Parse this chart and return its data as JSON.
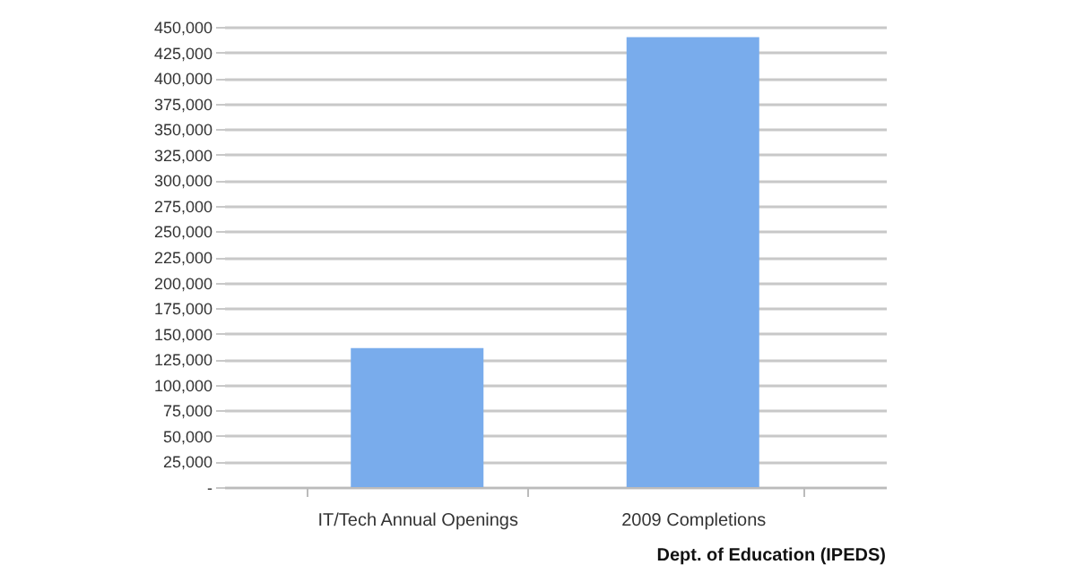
{
  "chart_data": {
    "type": "bar",
    "categories": [
      "IT/Tech Annual Openings",
      "2009 Completions"
    ],
    "values": [
      136000,
      440000
    ],
    "color": "#79acec",
    "ylim": [
      0,
      450000
    ],
    "yticks": [
      {
        "value": 0,
        "label": "-"
      },
      {
        "value": 25000,
        "label": "25,000"
      },
      {
        "value": 50000,
        "label": "50,000"
      },
      {
        "value": 75000,
        "label": "75,000"
      },
      {
        "value": 100000,
        "label": "100,000"
      },
      {
        "value": 125000,
        "label": "125,000"
      },
      {
        "value": 150000,
        "label": "150,000"
      },
      {
        "value": 175000,
        "label": "175,000"
      },
      {
        "value": 200000,
        "label": "200,000"
      },
      {
        "value": 225000,
        "label": "225,000"
      },
      {
        "value": 250000,
        "label": "250,000"
      },
      {
        "value": 275000,
        "label": "275,000"
      },
      {
        "value": 300000,
        "label": "300,000"
      },
      {
        "value": 325000,
        "label": "325,000"
      },
      {
        "value": 350000,
        "label": "350,000"
      },
      {
        "value": 375000,
        "label": "375,000"
      },
      {
        "value": 400000,
        "label": "400,000"
      },
      {
        "value": 425000,
        "label": "425,000"
      },
      {
        "value": 450000,
        "label": "450,000"
      }
    ],
    "grid": "y",
    "annotations": [
      "Dept. of Education (IPEDS)"
    ]
  }
}
